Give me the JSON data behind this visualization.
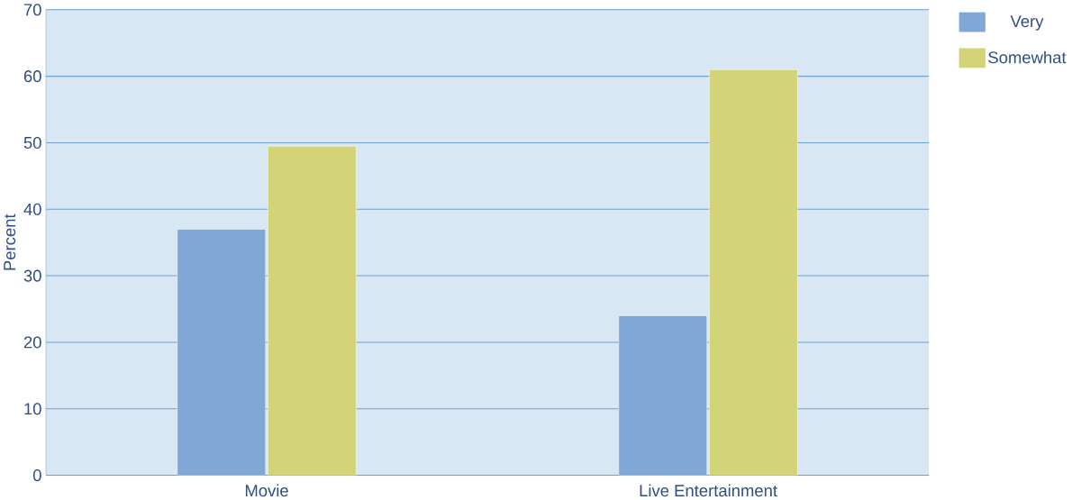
{
  "chart_data": {
    "type": "bar",
    "ylabel": "Percent",
    "categories": [
      "Movie",
      "Live Entertainment"
    ],
    "series": [
      {
        "name": "Very",
        "color": "#80a7d5",
        "values": [
          37,
          24
        ]
      },
      {
        "name": "Somewhat",
        "color": "#d3d377",
        "values": [
          49.5,
          61
        ]
      }
    ],
    "ylim": [
      0,
      70
    ],
    "yticks": [
      0,
      10,
      20,
      30,
      40,
      50,
      60,
      70
    ],
    "grid": "y",
    "legend": "top right"
  }
}
